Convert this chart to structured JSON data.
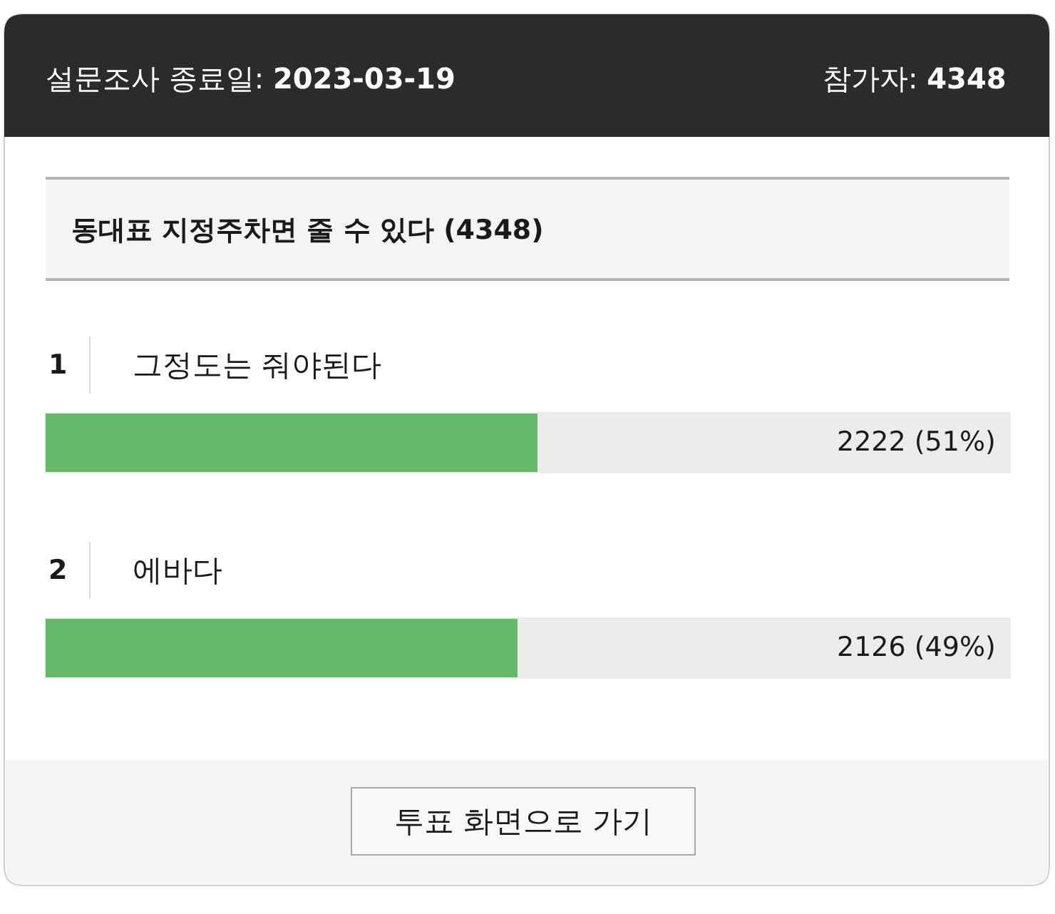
{
  "chart_data": {
    "type": "bar",
    "orientation": "horizontal",
    "title": "동대표 지정주차면 줄 수 있다 (4348)",
    "categories": [
      "그정도는 줘야된다",
      "에바다"
    ],
    "values": [
      2222,
      2126
    ],
    "color": "#66b96a",
    "value_labels": [
      "2222 (51%)",
      "2126 (49%)"
    ],
    "xlim": [
      0,
      4348
    ],
    "tick_labels": false,
    "annotations": [
      "설문조사 종료일: 2023-03-19",
      "참가자: 4348",
      "1",
      "2",
      "투표 화면으로 가기"
    ]
  }
}
